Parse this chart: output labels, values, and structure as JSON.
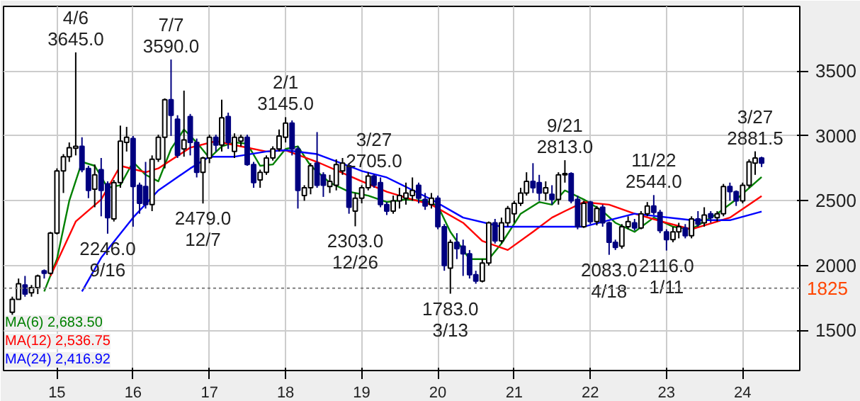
{
  "chart_data": {
    "type": "candlestick",
    "x": [
      "2014-06",
      "2014-07",
      "2014-08",
      "2014-09",
      "2014-10",
      "2014-11",
      "2014-12",
      "2015-01",
      "2015-02",
      "2015-03",
      "2015-04",
      "2015-05",
      "2015-06",
      "2015-07",
      "2015-08",
      "2015-09",
      "2015-10",
      "2015-11",
      "2015-12",
      "2016-01",
      "2016-02",
      "2016-03",
      "2016-04",
      "2016-05",
      "2016-06",
      "2016-07",
      "2016-08",
      "2016-09",
      "2016-10",
      "2016-11",
      "2016-12",
      "2017-01",
      "2017-02",
      "2017-03",
      "2017-04",
      "2017-05",
      "2017-06",
      "2017-07",
      "2017-08",
      "2017-09",
      "2017-10",
      "2017-11",
      "2017-12",
      "2018-01",
      "2018-02",
      "2018-03",
      "2018-04",
      "2018-05",
      "2018-06",
      "2018-07",
      "2018-08",
      "2018-09",
      "2018-10",
      "2018-11",
      "2018-12",
      "2019-01",
      "2019-02",
      "2019-03",
      "2019-04",
      "2019-05",
      "2019-06",
      "2019-07",
      "2019-08",
      "2019-09",
      "2019-10",
      "2019-11",
      "2019-12",
      "2020-01",
      "2020-02",
      "2020-03",
      "2020-04",
      "2020-05",
      "2020-06",
      "2020-07",
      "2020-08",
      "2020-09",
      "2020-10",
      "2020-11",
      "2020-12",
      "2021-01",
      "2021-02",
      "2021-03",
      "2021-04",
      "2021-05",
      "2021-06",
      "2021-07",
      "2021-08",
      "2021-09",
      "2021-10",
      "2021-11",
      "2021-12",
      "2022-01",
      "2022-02",
      "2022-03",
      "2022-04",
      "2022-05",
      "2022-06",
      "2022-07",
      "2022-08",
      "2022-09",
      "2022-10",
      "2022-11",
      "2022-12",
      "2023-01",
      "2023-02",
      "2023-03",
      "2023-04",
      "2023-05",
      "2023-06",
      "2023-07",
      "2023-08",
      "2023-09",
      "2023-10",
      "2023-11",
      "2023-12",
      "2024-01",
      "2024-02",
      "2024-03",
      "2024-04"
    ],
    "ohlc": [
      [
        1640,
        1760,
        1620,
        1740
      ],
      [
        1740,
        1900,
        1740,
        1860
      ],
      [
        1850,
        1920,
        1760,
        1780
      ],
      [
        1790,
        1850,
        1760,
        1830
      ],
      [
        1830,
        1930,
        1780,
        1920
      ],
      [
        1960,
        1970,
        1900,
        1940
      ],
      [
        1940,
        2260,
        1930,
        2250
      ],
      [
        2250,
        2750,
        2240,
        2730
      ],
      [
        2730,
        2860,
        2560,
        2840
      ],
      [
        2840,
        2950,
        2800,
        2910
      ],
      [
        2905,
        3645,
        2850,
        2920
      ],
      [
        2920,
        2990,
        2720,
        2740
      ],
      [
        2750,
        2770,
        2520,
        2580
      ],
      [
        2590,
        2780,
        2450,
        2700
      ],
      [
        2740,
        2830,
        2380,
        2580
      ],
      [
        2630,
        2650,
        2246,
        2370
      ],
      [
        2360,
        2660,
        2340,
        2640
      ],
      [
        2640,
        3080,
        2600,
        2960
      ],
      [
        2950,
        3070,
        2880,
        2990
      ],
      [
        2980,
        3000,
        2300,
        2610
      ],
      [
        2620,
        2640,
        2400,
        2480
      ],
      [
        2610,
        2800,
        2440,
        2470
      ],
      [
        2470,
        2850,
        2420,
        2820
      ],
      [
        2820,
        3010,
        2800,
        2990
      ],
      [
        2990,
        3290,
        2750,
        3280
      ],
      [
        3280,
        3590,
        3000,
        3160
      ],
      [
        3130,
        3160,
        2830,
        2850
      ],
      [
        2900,
        3350,
        2840,
        2970
      ],
      [
        3150,
        3170,
        2850,
        2950
      ],
      [
        2950,
        2980,
        2680,
        2720
      ],
      [
        2720,
        2840,
        2479,
        2830
      ],
      [
        2830,
        3010,
        2790,
        2990
      ],
      [
        2990,
        3010,
        2880,
        2930
      ],
      [
        2930,
        3280,
        2880,
        3140
      ],
      [
        3150,
        3180,
        2900,
        2950
      ],
      [
        2880,
        3020,
        2830,
        2990
      ],
      [
        2960,
        3010,
        2920,
        2990
      ],
      [
        2990,
        3010,
        2770,
        2780
      ],
      [
        2780,
        2800,
        2600,
        2640
      ],
      [
        2660,
        2740,
        2600,
        2720
      ],
      [
        2720,
        2850,
        2700,
        2830
      ],
      [
        2830,
        2920,
        2810,
        2900
      ],
      [
        2900,
        3050,
        2880,
        3000
      ],
      [
        2990,
        3145,
        2950,
        3100
      ],
      [
        3100,
        3120,
        2850,
        2900
      ],
      [
        2900,
        2920,
        2440,
        2580
      ],
      [
        2540,
        2620,
        2500,
        2600
      ],
      [
        2600,
        2790,
        2550,
        2770
      ],
      [
        2790,
        3030,
        2600,
        2620
      ],
      [
        2700,
        2720,
        2530,
        2620
      ],
      [
        2610,
        2700,
        2560,
        2650
      ],
      [
        2620,
        2820,
        2580,
        2780
      ],
      [
        2730,
        2830,
        2700,
        2790
      ],
      [
        2770,
        2790,
        2400,
        2450
      ],
      [
        2420,
        2560,
        2303,
        2520
      ],
      [
        2520,
        2620,
        2480,
        2600
      ],
      [
        2600,
        2720,
        2580,
        2690
      ],
      [
        2690,
        2705,
        2600,
        2620
      ],
      [
        2640,
        2680,
        2450,
        2470
      ],
      [
        2470,
        2490,
        2390,
        2420
      ],
      [
        2420,
        2540,
        2400,
        2500
      ],
      [
        2500,
        2600,
        2440,
        2540
      ],
      [
        2520,
        2640,
        2470,
        2560
      ],
      [
        2540,
        2680,
        2500,
        2580
      ],
      [
        2620,
        2640,
        2480,
        2520
      ],
      [
        2510,
        2560,
        2430,
        2460
      ],
      [
        2470,
        2560,
        2440,
        2520
      ],
      [
        2520,
        2540,
        2280,
        2300
      ],
      [
        2300,
        2320,
        1960,
        2000
      ],
      [
        1980,
        2200,
        1783,
        2180
      ],
      [
        2180,
        2250,
        2050,
        2130
      ],
      [
        2150,
        2200,
        1920,
        2090
      ],
      [
        2090,
        2120,
        1900,
        1930
      ],
      [
        1930,
        1960,
        1860,
        1880
      ],
      [
        1880,
        2050,
        1870,
        2020
      ],
      [
        2020,
        2340,
        2000,
        2330
      ],
      [
        2330,
        2360,
        2170,
        2190
      ],
      [
        2190,
        2370,
        2170,
        2330
      ],
      [
        2330,
        2460,
        2300,
        2440
      ],
      [
        2400,
        2500,
        2330,
        2480
      ],
      [
        2480,
        2600,
        2460,
        2560
      ],
      [
        2560,
        2720,
        2540,
        2650
      ],
      [
        2650,
        2790,
        2560,
        2600
      ],
      [
        2640,
        2700,
        2500,
        2560
      ],
      [
        2560,
        2650,
        2500,
        2600
      ],
      [
        2550,
        2620,
        2470,
        2510
      ],
      [
        2510,
        2720,
        2470,
        2700
      ],
      [
        2700,
        2813,
        2640,
        2710
      ],
      [
        2710,
        2720,
        2480,
        2500
      ],
      [
        2510,
        2540,
        2280,
        2300
      ],
      [
        2300,
        2500,
        2290,
        2480
      ],
      [
        2490,
        2500,
        2320,
        2340
      ],
      [
        2340,
        2460,
        2310,
        2440
      ],
      [
        2450,
        2470,
        2300,
        2330
      ],
      [
        2330,
        2340,
        2083,
        2180
      ],
      [
        2180,
        2200,
        2120,
        2140
      ],
      [
        2150,
        2320,
        2130,
        2300
      ],
      [
        2300,
        2380,
        2280,
        2340
      ],
      [
        2330,
        2360,
        2270,
        2290
      ],
      [
        2290,
        2420,
        2280,
        2400
      ],
      [
        2400,
        2490,
        2380,
        2460
      ],
      [
        2460,
        2544,
        2390,
        2410
      ],
      [
        2410,
        2430,
        2250,
        2270
      ],
      [
        2260,
        2280,
        2116,
        2200
      ],
      [
        2200,
        2300,
        2180,
        2260
      ],
      [
        2260,
        2330,
        2210,
        2300
      ],
      [
        2290,
        2320,
        2210,
        2230
      ],
      [
        2230,
        2380,
        2210,
        2360
      ],
      [
        2360,
        2420,
        2300,
        2320
      ],
      [
        2330,
        2450,
        2300,
        2390
      ],
      [
        2400,
        2420,
        2330,
        2370
      ],
      [
        2370,
        2420,
        2340,
        2400
      ],
      [
        2400,
        2630,
        2380,
        2610
      ],
      [
        2610,
        2640,
        2500,
        2570
      ],
      [
        2570,
        2580,
        2460,
        2500
      ],
      [
        2500,
        2640,
        2480,
        2620
      ],
      [
        2620,
        2820,
        2600,
        2800
      ],
      [
        2790,
        2881.5,
        2700,
        2830
      ],
      [
        2830,
        2840,
        2760,
        2790
      ]
    ],
    "series": [
      {
        "name": "MA(6) 2,683.50",
        "type": "line",
        "color": "#008000",
        "x": [
          "2014-11",
          "2015-01",
          "2015-03",
          "2015-05",
          "2015-07",
          "2015-09",
          "2015-11",
          "2016-01",
          "2016-03",
          "2016-05",
          "2016-07",
          "2016-09",
          "2016-11",
          "2017-01",
          "2017-03",
          "2017-05",
          "2017-07",
          "2017-09",
          "2017-11",
          "2018-01",
          "2018-03",
          "2018-05",
          "2018-08",
          "2018-11",
          "2019-02",
          "2019-05",
          "2019-08",
          "2019-11",
          "2020-01",
          "2020-03",
          "2020-06",
          "2020-09",
          "2020-11",
          "2021-02",
          "2021-05",
          "2021-07",
          "2021-09",
          "2021-12",
          "2022-03",
          "2022-05",
          "2022-08",
          "2022-11",
          "2023-02",
          "2023-05",
          "2023-09",
          "2023-12",
          "2024-04"
        ],
        "values": [
          1800,
          2050,
          2500,
          2800,
          2770,
          2600,
          2620,
          2800,
          2700,
          2650,
          2900,
          3050,
          2950,
          2830,
          2920,
          2950,
          2940,
          2770,
          2780,
          2900,
          2920,
          2770,
          2640,
          2570,
          2540,
          2490,
          2510,
          2500,
          2460,
          2260,
          2050,
          2050,
          2170,
          2400,
          2490,
          2470,
          2580,
          2510,
          2420,
          2330,
          2260,
          2370,
          2300,
          2280,
          2400,
          2510,
          2683.5
        ]
      },
      {
        "name": "MA(12) 2,536.75",
        "type": "line",
        "color": "#ff0000",
        "x": [
          "2014-12",
          "2015-04",
          "2015-08",
          "2015-11",
          "2016-03",
          "2016-05",
          "2016-10",
          "2017-02",
          "2017-05",
          "2017-10",
          "2018-01",
          "2018-06",
          "2019-01",
          "2019-05",
          "2019-09",
          "2019-12",
          "2020-05",
          "2020-08",
          "2020-12",
          "2021-04",
          "2021-07",
          "2021-09",
          "2021-12",
          "2022-04",
          "2022-08",
          "2023-01",
          "2023-05",
          "2023-11",
          "2024-04"
        ],
        "values": [
          1920,
          2340,
          2510,
          2770,
          2720,
          2750,
          2910,
          2960,
          2930,
          2880,
          2890,
          2800,
          2650,
          2570,
          2510,
          2470,
          2330,
          2190,
          2120,
          2260,
          2370,
          2420,
          2490,
          2470,
          2400,
          2330,
          2280,
          2370,
          2536.75
        ]
      },
      {
        "name": "MA(24) 2,416.92",
        "type": "line",
        "color": "#0000ff",
        "x": [
          "2015-05",
          "2015-08",
          "2016-01",
          "2016-05",
          "2016-10",
          "2017-01",
          "2017-05",
          "2017-10",
          "2018-01",
          "2018-06",
          "2019-01",
          "2019-05",
          "2019-12",
          "2020-05",
          "2020-11",
          "2021-07",
          "2021-12",
          "2022-08",
          "2023-05",
          "2023-11",
          "2024-04"
        ],
        "values": [
          1800,
          2060,
          2370,
          2580,
          2750,
          2840,
          2840,
          2880,
          2890,
          2860,
          2730,
          2680,
          2510,
          2370,
          2300,
          2300,
          2300,
          2400,
          2350,
          2350,
          2416.92
        ]
      }
    ],
    "xlim": [
      "2014-04-20",
      "2024-10-01"
    ],
    "xticks": [
      {
        "value": "2015-01",
        "label": "15"
      },
      {
        "value": "2016-01",
        "label": "16"
      },
      {
        "value": "2017-01",
        "label": "17"
      },
      {
        "value": "2018-01",
        "label": "18"
      },
      {
        "value": "2019-01",
        "label": "19"
      },
      {
        "value": "2020-01",
        "label": "20"
      },
      {
        "value": "2021-01",
        "label": "21"
      },
      {
        "value": "2022-01",
        "label": "22"
      },
      {
        "value": "2023-01",
        "label": "23"
      },
      {
        "value": "2024-01",
        "label": "24"
      }
    ],
    "ylim": [
      1190,
      4000
    ],
    "yticks": [
      1500,
      2000,
      2500,
      3000,
      3500
    ],
    "ref_lines": [
      {
        "axis": "y",
        "value": 1825,
        "label": "1825",
        "color": "#808080",
        "line_style": "dashed"
      }
    ],
    "annotations": [
      {
        "text": "4/6\n3645.0",
        "x": "2015-04",
        "y": 3645
      },
      {
        "text": "2246.0\n9/16",
        "x": "2015-09",
        "y": 2246
      },
      {
        "text": "7/7\n3590.0",
        "x": "2016-07",
        "y": 3590
      },
      {
        "text": "2479.0\n12/7",
        "x": "2016-12",
        "y": 2479
      },
      {
        "text": "2/1\n3145.0",
        "x": "2018-01",
        "y": 3145
      },
      {
        "text": "2303.0\n12/26",
        "x": "2018-12",
        "y": 2303
      },
      {
        "text": "3/27\n2705.0",
        "x": "2019-03",
        "y": 2705
      },
      {
        "text": "1783.0\n3/13",
        "x": "2020-03",
        "y": 1783
      },
      {
        "text": "9/21\n2813.0",
        "x": "2021-09",
        "y": 2813
      },
      {
        "text": "2083.0\n4/18",
        "x": "2022-04",
        "y": 2083
      },
      {
        "text": "11/22\n2544.0",
        "x": "2022-11",
        "y": 2544
      },
      {
        "text": "2116.0\n1/11",
        "x": "2023-01",
        "y": 2116
      },
      {
        "text": "3/27\n2881.5",
        "x": "2024-03",
        "y": 2881.5
      }
    ],
    "grid": true,
    "legend": "bottom left"
  }
}
